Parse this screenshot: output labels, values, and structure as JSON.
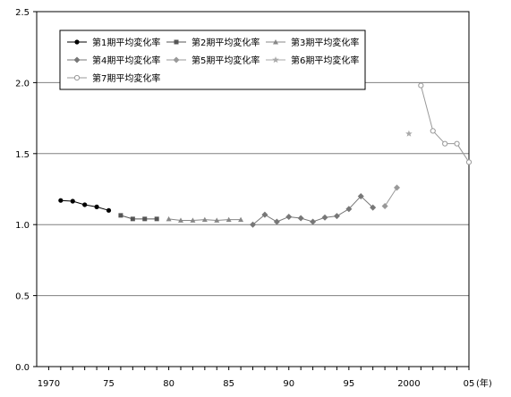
{
  "chart_data": {
    "type": "line",
    "x_unit_label": "(年)",
    "xlim": [
      1969,
      2005
    ],
    "ylim": [
      0,
      2.5
    ],
    "grid": true,
    "legend_position": "top-left",
    "x_tick_labels": [
      {
        "x": 1970,
        "label": "1970"
      },
      {
        "x": 1975,
        "label": "75"
      },
      {
        "x": 1980,
        "label": "80"
      },
      {
        "x": 1985,
        "label": "85"
      },
      {
        "x": 1990,
        "label": "90"
      },
      {
        "x": 1995,
        "label": "95"
      },
      {
        "x": 2000,
        "label": "2000"
      },
      {
        "x": 2005,
        "label": "05"
      }
    ],
    "y_tick_labels": [
      {
        "y": 0,
        "label": "0.0"
      },
      {
        "y": 0.5,
        "label": "0.5"
      },
      {
        "y": 1.0,
        "label": "1.0"
      },
      {
        "y": 1.5,
        "label": "1.5"
      },
      {
        "y": 2.0,
        "label": "2.0"
      },
      {
        "y": 2.5,
        "label": "2.5"
      }
    ],
    "series": [
      {
        "name": "第1期平均変化率",
        "color": "#000000",
        "marker": "circle-filled",
        "points": [
          [
            1971,
            1.17
          ],
          [
            1972,
            1.165
          ],
          [
            1973,
            1.14
          ],
          [
            1974,
            1.125
          ],
          [
            1975,
            1.1
          ]
        ]
      },
      {
        "name": "第2期平均変化率",
        "color": "#555555",
        "marker": "square",
        "points": [
          [
            1976,
            1.065
          ],
          [
            1977,
            1.04
          ],
          [
            1978,
            1.04
          ],
          [
            1979,
            1.04
          ]
        ]
      },
      {
        "name": "第3期平均変化率",
        "color": "#888888",
        "marker": "triangle",
        "points": [
          [
            1980,
            1.04
          ],
          [
            1981,
            1.03
          ],
          [
            1982,
            1.03
          ],
          [
            1983,
            1.035
          ],
          [
            1984,
            1.03
          ],
          [
            1985,
            1.035
          ],
          [
            1986,
            1.035
          ]
        ]
      },
      {
        "name": "第4期平均変化率",
        "color": "#777777",
        "marker": "diamond",
        "points": [
          [
            1987,
            1.0
          ],
          [
            1988,
            1.07
          ],
          [
            1989,
            1.02
          ],
          [
            1990,
            1.055
          ],
          [
            1991,
            1.045
          ],
          [
            1992,
            1.02
          ],
          [
            1993,
            1.05
          ],
          [
            1994,
            1.06
          ],
          [
            1995,
            1.11
          ],
          [
            1996,
            1.2
          ],
          [
            1997,
            1.12
          ]
        ]
      },
      {
        "name": "第5期平均変化率",
        "color": "#999999",
        "marker": "diamond",
        "points": [
          [
            1998,
            1.13
          ],
          [
            1999,
            1.26
          ]
        ]
      },
      {
        "name": "第6期平均変化率",
        "color": "#aaaaaa",
        "marker": "star",
        "points": [
          [
            2000,
            1.64
          ]
        ]
      },
      {
        "name": "第7期平均変化率",
        "color": "#999999",
        "marker": "circle-open",
        "points": [
          [
            2001,
            1.98
          ],
          [
            2002,
            1.66
          ],
          [
            2003,
            1.57
          ],
          [
            2004,
            1.57
          ],
          [
            2005,
            1.44
          ]
        ]
      }
    ]
  }
}
